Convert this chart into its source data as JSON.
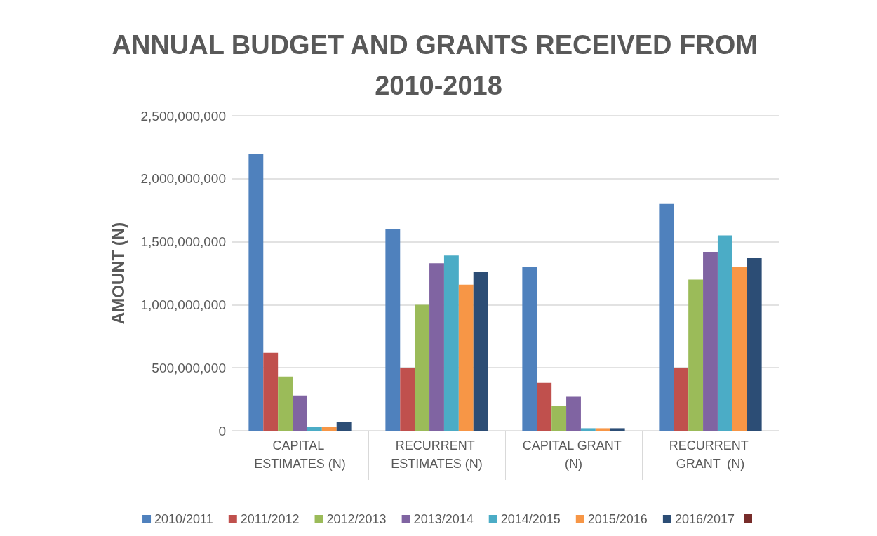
{
  "chart_data": {
    "type": "bar",
    "title": "ANNUAL BUDGET AND GRANTS RECEIVED FROM 2010-2018",
    "ylabel": "AMOUNT (N)",
    "categories": [
      "CAPITAL ESTIMATES (N)",
      "RECURRENT ESTIMATES (N)",
      "CAPITAL GRANT (N)",
      "RECURRENT GRANT  (N)"
    ],
    "series": [
      {
        "name": "2010/2011",
        "color": "#4f81bd",
        "values": [
          2200000000,
          1600000000,
          1300000000,
          1800000000
        ]
      },
      {
        "name": "2011/2012",
        "color": "#c0504d",
        "values": [
          620000000,
          500000000,
          380000000,
          500000000
        ]
      },
      {
        "name": "2012/2013",
        "color": "#9bbb59",
        "values": [
          430000000,
          1000000000,
          200000000,
          1200000000
        ]
      },
      {
        "name": "2013/2014",
        "color": "#8064a2",
        "values": [
          280000000,
          1330000000,
          270000000,
          1420000000
        ]
      },
      {
        "name": "2014/2015",
        "color": "#4bacc6",
        "values": [
          30000000,
          1390000000,
          20000000,
          1550000000
        ]
      },
      {
        "name": "2015/2016",
        "color": "#f79646",
        "values": [
          30000000,
          1160000000,
          20000000,
          1300000000
        ]
      },
      {
        "name": "2016/2017",
        "color": "#2c4d75",
        "values": [
          70000000,
          1260000000,
          20000000,
          1370000000
        ]
      }
    ],
    "ylim": [
      0,
      2500000000
    ],
    "yticks": [
      0,
      {
        "value": 500000000,
        "label": "500,000,000"
      },
      {
        "value": 1000000000,
        "label": "1,000,000,000"
      },
      {
        "value": 1500000000,
        "label": "1,500,000,000"
      },
      {
        "value": 2000000000,
        "label": "2,000,000,000"
      },
      {
        "value": 2500000000,
        "label": "2,500,000,000"
      }
    ],
    "grid": "y",
    "legend": "bottom"
  }
}
